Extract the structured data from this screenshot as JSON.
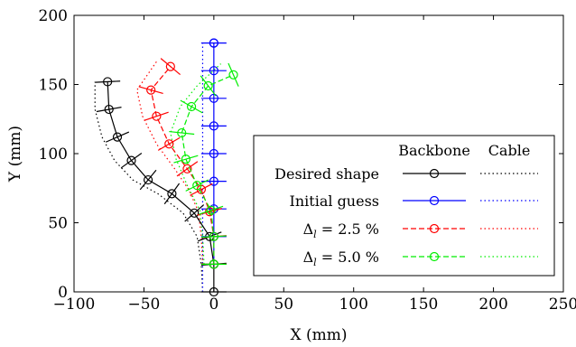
{
  "chart_data": {
    "type": "line",
    "xlabel": "X (mm)",
    "ylabel": "Y (mm)",
    "xlim": [
      -100,
      250
    ],
    "ylim": [
      0,
      200
    ],
    "xticks": [
      -100,
      -50,
      0,
      50,
      100,
      150,
      200,
      250
    ],
    "yticks": [
      0,
      50,
      100,
      150,
      200
    ],
    "xtick_labels": [
      "−100",
      "−50",
      "0",
      "50",
      "100",
      "150",
      "200",
      "250"
    ],
    "ytick_labels": [
      "0",
      "50",
      "100",
      "150",
      "200"
    ],
    "grid": false,
    "legend_placement": "lower-right",
    "legend": {
      "col_headers": [
        "Backbone",
        "Cable"
      ],
      "entries": [
        "Desired shape",
        "Initial guess",
        "Δ",
        "Δ"
      ],
      "entry_subscripts": [
        "",
        "",
        "l",
        "l"
      ],
      "entry_values": [
        "",
        "",
        " = 2.5 %",
        " = 5.0 %"
      ]
    },
    "series": [
      {
        "name": "Desired shape",
        "color": "#000000",
        "style": "solid",
        "cable_style": "dotted",
        "backbone": {
          "x": [
            0,
            0,
            -3,
            -14,
            -30,
            -47,
            -59,
            -69,
            -75,
            -76
          ],
          "y": [
            0,
            20,
            40,
            57,
            71,
            81,
            95,
            112,
            132,
            152
          ]
        },
        "cable": {
          "x": [
            -8,
            -9,
            -12,
            -22,
            -40,
            -58,
            -71,
            -80,
            -85,
            -85
          ],
          "y": [
            0,
            20,
            40,
            57,
            71,
            81,
            95,
            112,
            132,
            152
          ]
        }
      },
      {
        "name": "Initial guess",
        "color": "#0000ff",
        "style": "solid",
        "cable_style": "dotted",
        "backbone": {
          "x": [
            0,
            0,
            0,
            0,
            0,
            0,
            0,
            0,
            0,
            0
          ],
          "y": [
            20,
            40,
            60,
            80,
            100,
            120,
            140,
            160,
            180,
            180
          ]
        },
        "cable": {
          "x": [
            -8,
            -8,
            -8,
            -8,
            -8,
            -8,
            -8,
            -8,
            -8,
            -8
          ],
          "y": [
            0,
            20,
            40,
            60,
            80,
            100,
            120,
            140,
            160,
            180
          ]
        }
      },
      {
        "name": "Δl = 2.5 %",
        "color": "#ff0000",
        "style": "dashed",
        "cable_style": "dotted",
        "backbone": {
          "x": [
            0,
            0,
            -3,
            -9,
            -19,
            -32,
            -41,
            -45,
            -31
          ],
          "y": [
            20,
            40,
            58,
            74,
            89,
            107,
            127,
            146,
            163
          ]
        },
        "cable": {
          "x": [
            -8,
            -9,
            -11,
            -18,
            -28,
            -41,
            -51,
            -55,
            -40
          ],
          "y": [
            20,
            40,
            58,
            74,
            89,
            107,
            127,
            146,
            168
          ]
        }
      },
      {
        "name": "Δl = 5.0 %",
        "color": "#00ee00",
        "style": "dashed",
        "cable_style": "dotted",
        "backbone": {
          "x": [
            0,
            0,
            -2,
            -12,
            -20,
            -23,
            -16,
            -4,
            14
          ],
          "y": [
            20,
            40,
            59,
            77,
            96,
            115,
            134,
            149,
            157
          ]
        },
        "cable": {
          "x": [
            -7,
            -8,
            -10,
            -19,
            -27,
            -31,
            -24,
            -12,
            5
          ],
          "y": [
            20,
            40,
            59,
            77,
            96,
            115,
            134,
            149,
            165
          ]
        }
      }
    ]
  }
}
